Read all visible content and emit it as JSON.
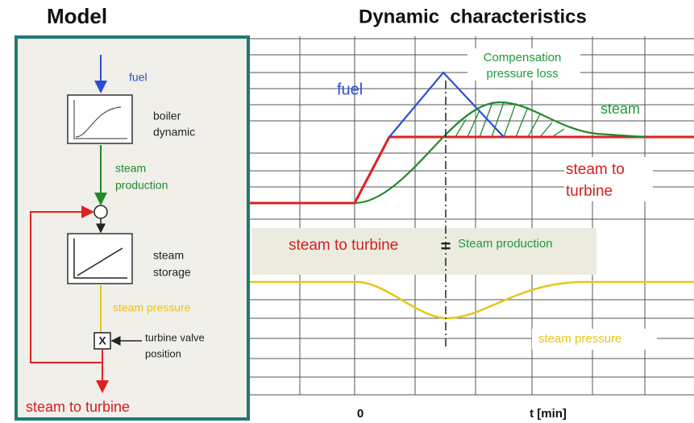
{
  "model": {
    "title": "Model",
    "fuel": "fuel",
    "boiler": [
      "boiler",
      "dynamic"
    ],
    "production": [
      "steam",
      "production"
    ],
    "storage": [
      "steam",
      "storage"
    ],
    "pressure": "steam pressure",
    "valve_symbol": "X",
    "valve": [
      "turbine valve",
      "position"
    ],
    "output": "steam to turbine"
  },
  "dynamics": {
    "title": "Dynamic  characteristics",
    "compensation": [
      "Compensation",
      "pressure loss"
    ],
    "fuel": "fuel",
    "steam": "steam",
    "steam_to_turbine": [
      "steam to",
      "turbine"
    ],
    "balance_left": "steam to turbine",
    "balance_sign": "=",
    "balance_right": "Steam production",
    "pressure": "steam pressure",
    "x_origin": "0",
    "x_label": "t [min]"
  }
}
